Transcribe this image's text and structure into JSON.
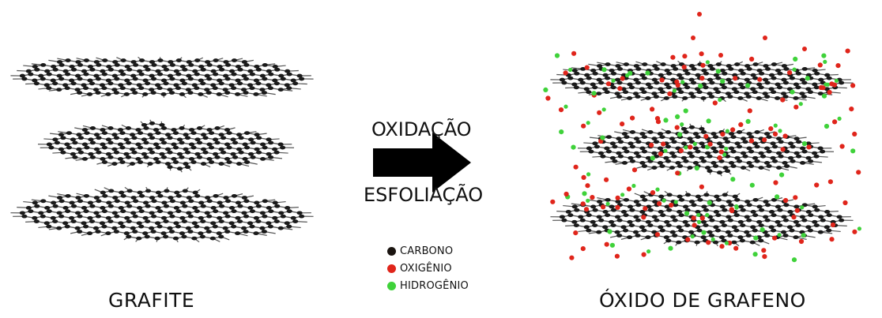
{
  "labels": {
    "graphite": "GRAFITE",
    "graphene_oxide": "ÓXIDO DE GRAFENO",
    "step_top": "OXIDAÇÃO",
    "step_bottom": "ESFOLIAÇÃO"
  },
  "legend": [
    {
      "label": "CARBONO",
      "color": "#1a1410"
    },
    {
      "label": "OXIGÊNIO",
      "color": "#e0251b"
    },
    {
      "label": "HIDROGÊNIO",
      "color": "#3fd23a"
    }
  ],
  "colors": {
    "bond": "#555555",
    "carbon": "#1a1a1a",
    "oxygen": "#e0251b",
    "hydrogen": "#3fd23a",
    "arrow": "#000000"
  },
  "icons": {
    "arrow": "right-arrow-icon"
  }
}
